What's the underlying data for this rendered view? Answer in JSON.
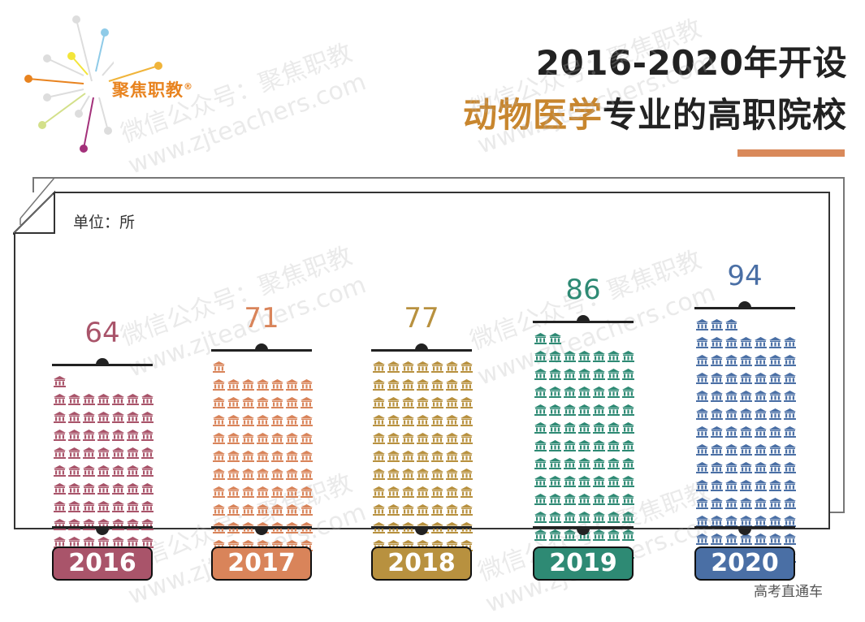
{
  "logo": {
    "text": "聚焦职教",
    "reg": "®"
  },
  "title": {
    "line1": "2016-2020年开设",
    "line2_highlight": "动物医学",
    "line2_rest": "专业的高职院校"
  },
  "unit_label": "单位：所",
  "footer": "高考直通车",
  "watermarks": [
    "微信公众号：聚焦职教",
    "www.zjteachers.com"
  ],
  "colors": {
    "2016": "#a9546a",
    "2017": "#d9845a",
    "2018": "#b8913f",
    "2019": "#2e8a74",
    "2020": "#4a6fa5",
    "title_highlight": "#c8862e"
  },
  "chart_data": {
    "type": "bar",
    "title": "2016-2020年开设动物医学专业的高职院校",
    "ylabel": "单位：所",
    "categories": [
      "2016",
      "2017",
      "2018",
      "2019",
      "2020"
    ],
    "values": [
      64,
      71,
      77,
      86,
      94
    ],
    "style": "pictogram (one building icon per school, 7 per row)"
  },
  "bars": [
    {
      "year": "2016",
      "value": "64"
    },
    {
      "year": "2017",
      "value": "71"
    },
    {
      "year": "2018",
      "value": "77"
    },
    {
      "year": "2019",
      "value": "86"
    },
    {
      "year": "2020",
      "value": "94"
    }
  ]
}
